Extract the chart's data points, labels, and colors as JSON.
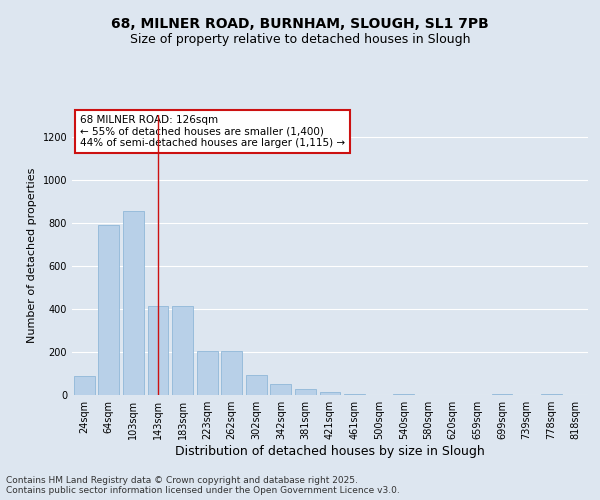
{
  "title_line1": "68, MILNER ROAD, BURNHAM, SLOUGH, SL1 7PB",
  "title_line2": "Size of property relative to detached houses in Slough",
  "xlabel": "Distribution of detached houses by size in Slough",
  "ylabel": "Number of detached properties",
  "categories": [
    "24sqm",
    "64sqm",
    "103sqm",
    "143sqm",
    "183sqm",
    "223sqm",
    "262sqm",
    "302sqm",
    "342sqm",
    "381sqm",
    "421sqm",
    "461sqm",
    "500sqm",
    "540sqm",
    "580sqm",
    "620sqm",
    "659sqm",
    "699sqm",
    "739sqm",
    "778sqm",
    "818sqm"
  ],
  "values": [
    90,
    790,
    855,
    415,
    415,
    205,
    205,
    95,
    50,
    30,
    15,
    5,
    0,
    5,
    0,
    0,
    0,
    5,
    0,
    5,
    0
  ],
  "bar_color": "#b8d0e8",
  "bar_edgecolor": "#90b8d8",
  "vline_x": 3,
  "vline_color": "#cc1111",
  "annotation_text": "68 MILNER ROAD: 126sqm\n← 55% of detached houses are smaller (1,400)\n44% of semi-detached houses are larger (1,115) →",
  "annotation_box_facecolor": "#ffffff",
  "annotation_box_edgecolor": "#cc1111",
  "footnote": "Contains HM Land Registry data © Crown copyright and database right 2025.\nContains public sector information licensed under the Open Government Licence v3.0.",
  "ylim": [
    0,
    1300
  ],
  "yticks": [
    0,
    200,
    400,
    600,
    800,
    1000,
    1200
  ],
  "bg_color": "#dde6f0",
  "plot_bg_color": "#dde6f0",
  "title_fontsize": 10,
  "subtitle_fontsize": 9,
  "axis_label_fontsize": 8,
  "tick_fontsize": 7,
  "footnote_fontsize": 6.5,
  "annotation_fontsize": 7.5
}
